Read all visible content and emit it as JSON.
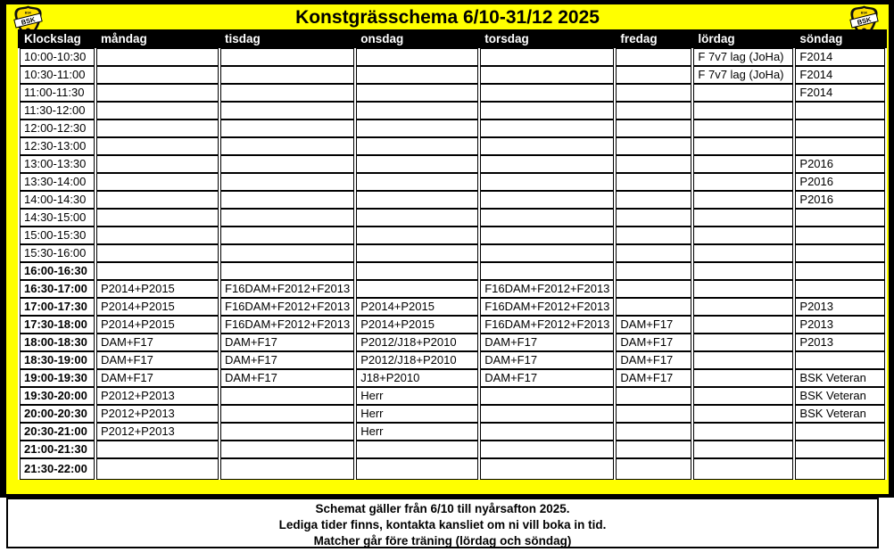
{
  "title": "Konstgrässchema 6/10-31/12 2025",
  "logo_text": "BSK",
  "colors": {
    "background": "#ffff00",
    "border": "#000000",
    "header_bg": "#000000",
    "header_text": "#ffffff",
    "cell_bg": "#ffffff"
  },
  "table": {
    "columns": [
      "Klockslag",
      "måndag",
      "tisdag",
      "onsdag",
      "torsdag",
      "fredag",
      "lördag",
      "söndag"
    ],
    "rows": [
      {
        "time": "10:00-10:30",
        "bold": false,
        "cells": [
          "",
          "",
          "",
          "",
          "",
          "F 7v7 lag (JoHa)",
          "F2014"
        ]
      },
      {
        "time": "10:30-11:00",
        "bold": false,
        "cells": [
          "",
          "",
          "",
          "",
          "",
          "F 7v7 lag (JoHa)",
          "F2014"
        ]
      },
      {
        "time": "11:00-11:30",
        "bold": false,
        "cells": [
          "",
          "",
          "",
          "",
          "",
          "",
          "F2014"
        ]
      },
      {
        "time": "11:30-12:00",
        "bold": false,
        "cells": [
          "",
          "",
          "",
          "",
          "",
          "",
          ""
        ]
      },
      {
        "time": "12:00-12:30",
        "bold": false,
        "cells": [
          "",
          "",
          "",
          "",
          "",
          "",
          ""
        ]
      },
      {
        "time": "12:30-13:00",
        "bold": false,
        "cells": [
          "",
          "",
          "",
          "",
          "",
          "",
          ""
        ]
      },
      {
        "time": "13:00-13:30",
        "bold": false,
        "cells": [
          "",
          "",
          "",
          "",
          "",
          "",
          "P2016"
        ]
      },
      {
        "time": "13:30-14:00",
        "bold": false,
        "cells": [
          "",
          "",
          "",
          "",
          "",
          "",
          "P2016"
        ]
      },
      {
        "time": "14:00-14:30",
        "bold": false,
        "cells": [
          "",
          "",
          "",
          "",
          "",
          "",
          "P2016"
        ]
      },
      {
        "time": "14:30-15:00",
        "bold": false,
        "cells": [
          "",
          "",
          "",
          "",
          "",
          "",
          ""
        ]
      },
      {
        "time": "15:00-15:30",
        "bold": false,
        "cells": [
          "",
          "",
          "",
          "",
          "",
          "",
          ""
        ]
      },
      {
        "time": "15:30-16:00",
        "bold": false,
        "cells": [
          "",
          "",
          "",
          "",
          "",
          "",
          ""
        ]
      },
      {
        "time": "16:00-16:30",
        "bold": true,
        "cells": [
          "",
          "",
          "",
          "",
          "",
          "",
          ""
        ]
      },
      {
        "time": "16:30-17:00",
        "bold": true,
        "cells": [
          "P2014+P2015",
          "F16DAM+F2012+F2013",
          "",
          "F16DAM+F2012+F2013",
          "",
          "",
          ""
        ]
      },
      {
        "time": "17:00-17:30",
        "bold": true,
        "cells": [
          "P2014+P2015",
          "F16DAM+F2012+F2013",
          "P2014+P2015",
          "F16DAM+F2012+F2013",
          "",
          "",
          "P2013"
        ]
      },
      {
        "time": "17:30-18:00",
        "bold": true,
        "cells": [
          "P2014+P2015",
          "F16DAM+F2012+F2013",
          "P2014+P2015",
          "F16DAM+F2012+F2013",
          "DAM+F17",
          "",
          "P2013"
        ]
      },
      {
        "time": "18:00-18:30",
        "bold": true,
        "cells": [
          "DAM+F17",
          "DAM+F17",
          "P2012/J18+P2010",
          "DAM+F17",
          "DAM+F17",
          "",
          "P2013"
        ]
      },
      {
        "time": "18:30-19:00",
        "bold": true,
        "cells": [
          "DAM+F17",
          "DAM+F17",
          "P2012/J18+P2010",
          "DAM+F17",
          "DAM+F17",
          "",
          ""
        ]
      },
      {
        "time": "19:00-19:30",
        "bold": true,
        "cells": [
          "DAM+F17",
          "DAM+F17",
          "J18+P2010",
          "DAM+F17",
          "DAM+F17",
          "",
          "BSK Veteran"
        ]
      },
      {
        "time": "19:30-20:00",
        "bold": true,
        "cells": [
          "P2012+P2013",
          "",
          "Herr",
          "",
          "",
          "",
          "BSK Veteran"
        ]
      },
      {
        "time": "20:00-20:30",
        "bold": true,
        "cells": [
          "P2012+P2013",
          "",
          "Herr",
          "",
          "",
          "",
          "BSK Veteran"
        ]
      },
      {
        "time": "20:30-21:00",
        "bold": true,
        "cells": [
          "P2012+P2013",
          "",
          "Herr",
          "",
          "",
          "",
          ""
        ]
      },
      {
        "time": "21:00-21:30",
        "bold": true,
        "cells": [
          "",
          "",
          "",
          "",
          "",
          "",
          ""
        ]
      },
      {
        "time": "21:30-22:00",
        "bold": true,
        "cells": [
          "",
          "",
          "",
          "",
          "",
          "",
          ""
        ]
      }
    ]
  },
  "footer": {
    "lines": [
      "Schemat gäller från 6/10 till nyårsafton 2025.",
      "Lediga tider finns, kontakta kansliet om ni vill boka in tid.",
      "Matcher går före träning (lördag och söndag)"
    ]
  }
}
